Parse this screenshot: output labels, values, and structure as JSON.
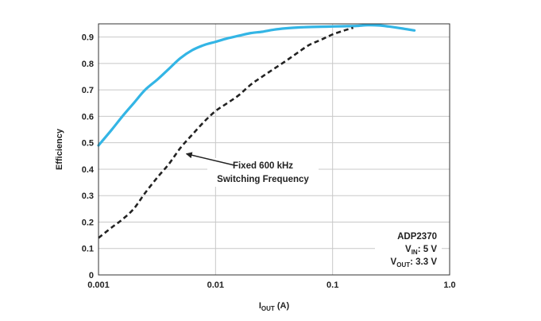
{
  "chart_data": {
    "type": "line",
    "xlabel": {
      "main": "I",
      "sub": "OUT",
      "suffix": " (A)"
    },
    "ylabel": "Efficiency",
    "x_scale": "log",
    "xlim": [
      0.001,
      1.0
    ],
    "ylim": [
      0,
      0.95
    ],
    "grid": true,
    "x_ticks": [
      {
        "value": 0.001,
        "label": "0.001"
      },
      {
        "value": 0.01,
        "label": "0.01"
      },
      {
        "value": 0.1,
        "label": "0.1"
      },
      {
        "value": 1.0,
        "label": "1.0"
      }
    ],
    "y_ticks": [
      {
        "value": 0,
        "label": "0"
      },
      {
        "value": 0.1,
        "label": "0.1"
      },
      {
        "value": 0.2,
        "label": "0.2"
      },
      {
        "value": 0.3,
        "label": "0.3"
      },
      {
        "value": 0.4,
        "label": "0.4"
      },
      {
        "value": 0.5,
        "label": "0.5"
      },
      {
        "value": 0.6,
        "label": "0.6"
      },
      {
        "value": 0.7,
        "label": "0.7"
      },
      {
        "value": 0.8,
        "label": "0.8"
      },
      {
        "value": 0.9,
        "label": "0.9"
      }
    ],
    "series": [
      {
        "color": "#33b5e5",
        "style": "solid",
        "x": [
          0.001,
          0.0013,
          0.0016,
          0.002,
          0.0025,
          0.0032,
          0.004,
          0.005,
          0.0063,
          0.008,
          0.01,
          0.0126,
          0.0158,
          0.02,
          0.025,
          0.0316,
          0.04,
          0.05,
          0.063,
          0.08,
          0.1,
          0.126,
          0.16,
          0.2,
          0.25,
          0.3,
          0.4,
          0.5
        ],
        "y": [
          0.49,
          0.55,
          0.6,
          0.65,
          0.7,
          0.74,
          0.78,
          0.82,
          0.85,
          0.87,
          0.882,
          0.895,
          0.905,
          0.915,
          0.92,
          0.928,
          0.933,
          0.936,
          0.938,
          0.939,
          0.94,
          0.941,
          0.942,
          0.945,
          0.944,
          0.94,
          0.932,
          0.925
        ]
      },
      {
        "color": "#222222",
        "style": "dashed",
        "x": [
          0.001,
          0.0013,
          0.0016,
          0.002,
          0.0025,
          0.0032,
          0.004,
          0.005,
          0.0063,
          0.008,
          0.01,
          0.0126,
          0.0158,
          0.02,
          0.025,
          0.0316,
          0.04,
          0.05,
          0.063,
          0.08,
          0.1,
          0.126,
          0.15
        ],
        "y": [
          0.14,
          0.18,
          0.21,
          0.25,
          0.31,
          0.37,
          0.42,
          0.48,
          0.53,
          0.58,
          0.62,
          0.65,
          0.68,
          0.72,
          0.75,
          0.78,
          0.81,
          0.84,
          0.87,
          0.89,
          0.91,
          0.925,
          0.935
        ]
      }
    ],
    "annotations": [
      {
        "lines": [
          "Fixed 600 kHz",
          "Switching Frequency"
        ],
        "arrow_to": {
          "x": 0.0053,
          "y": 0.47
        }
      }
    ],
    "legend_box": {
      "title": "ADP2370",
      "lines": [
        {
          "main": "V",
          "sub": "IN",
          "suffix": ": 5 V"
        },
        {
          "main": "V",
          "sub": "OUT",
          "suffix": ": 3.3 V"
        }
      ]
    }
  }
}
